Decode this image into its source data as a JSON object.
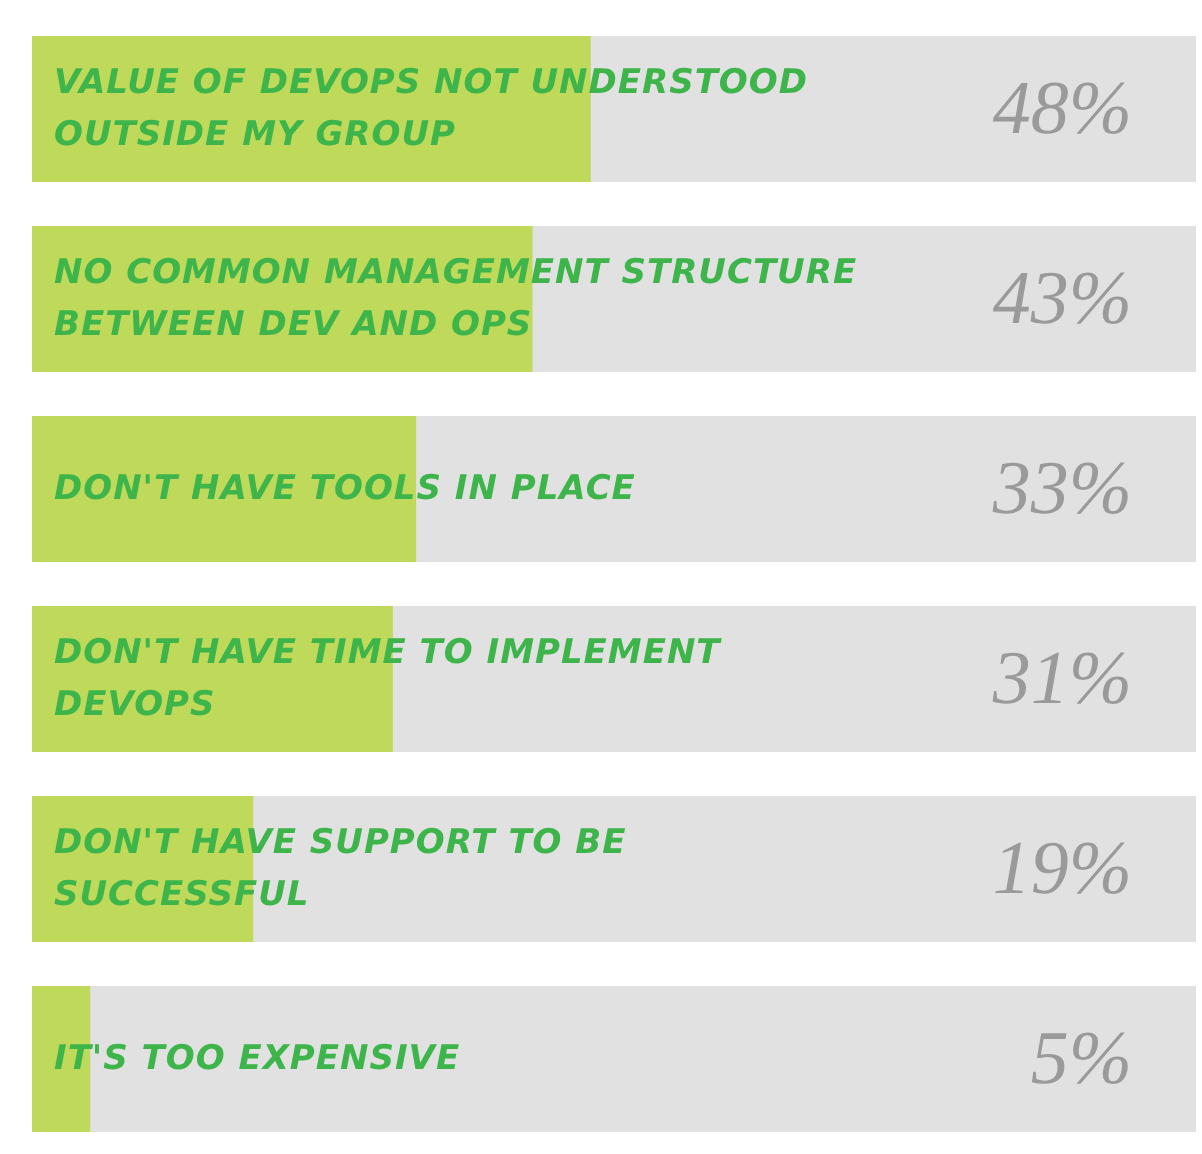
{
  "chart_data": {
    "type": "bar",
    "orientation": "horizontal",
    "categories": [
      "VALUE OF DEVOPS NOT UNDERSTOOD OUTSIDE MY GROUP",
      "NO COMMON MANAGEMENT STRUCTURE BETWEEN DEV AND OPS",
      "DON'T HAVE TOOLS IN PLACE",
      "DON'T HAVE TIME TO IMPLEMENT DEVOPS",
      "DON'T HAVE SUPPORT TO BE SUCCESSFUL",
      "IT'S TOO EXPENSIVE"
    ],
    "values": [
      48,
      43,
      33,
      31,
      19,
      5
    ],
    "value_labels": [
      "48%",
      "43%",
      "33%",
      "31%",
      "19%",
      "5%"
    ],
    "color": "#bfd95b",
    "xlim": [
      0,
      100
    ],
    "tick_labels": false
  }
}
